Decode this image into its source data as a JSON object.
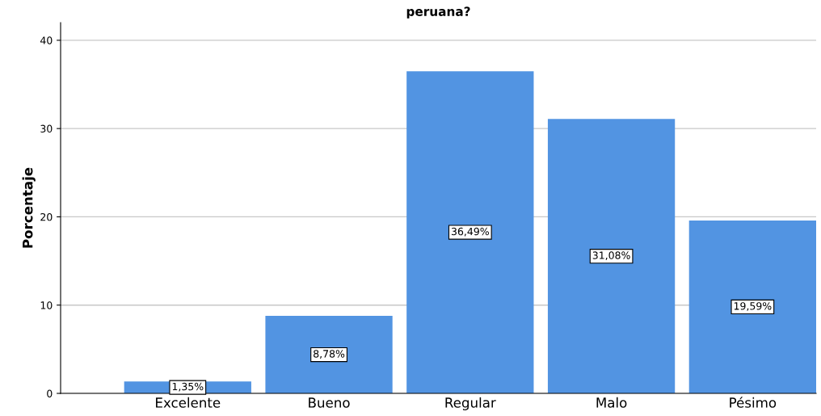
{
  "chart_data": {
    "type": "bar",
    "title": "peruana?",
    "ylabel": "Porcentaje",
    "categories": [
      "Excelente",
      "Bueno",
      "Regular",
      "Malo",
      "Pésimo"
    ],
    "values": [
      1.35,
      8.78,
      36.49,
      31.08,
      19.59
    ],
    "value_labels": [
      "1,35%",
      "8,78%",
      "36,49%",
      "31,08%",
      "19,59%"
    ],
    "color": "#5294e2",
    "ylim": [
      0,
      42
    ],
    "yticks": [
      0,
      10,
      20,
      30,
      40
    ],
    "grid": "y"
  }
}
